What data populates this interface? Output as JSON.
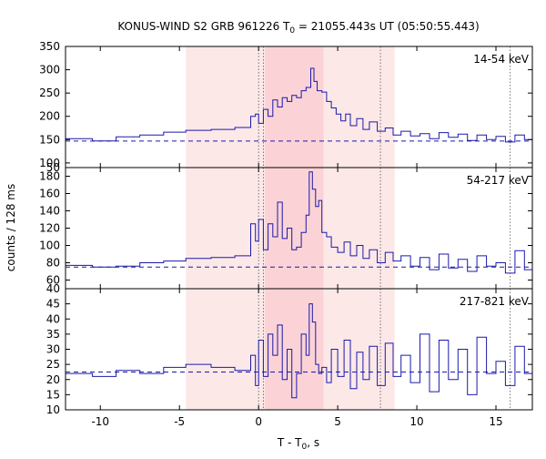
{
  "chart_data": {
    "type": "line",
    "title_main": "KONUS-WIND S2 GRB 961226 T",
    "title_sub": "0",
    "title_rest": " = 21055.443s UT (05:50:55.443)",
    "xlabel_main": "T - T",
    "xlabel_sub": "0",
    "xlabel_rest": ", s",
    "ylabel": "counts / 128 ms",
    "xlim": [
      -12.2,
      17.3
    ],
    "x_ticks": [
      -10,
      -5,
      0,
      5,
      10,
      15
    ],
    "intervals": {
      "light_shade": [
        -4.6,
        8.6
      ],
      "dark_shade": [
        0.4,
        4.1
      ]
    },
    "vertical_dotted_lines": [
      0.0,
      0.3,
      7.7,
      15.9
    ],
    "colors": {
      "curve": "#1a1aaa",
      "light_shade": "#fde8e8",
      "dark_shade": "#fbd3d7"
    },
    "panels": [
      {
        "label": "14-54 keV",
        "ylim": [
          90,
          350
        ],
        "y_ticks": [
          100,
          150,
          200,
          250,
          300,
          350
        ],
        "background": 147,
        "series": {
          "x": [
            -12.2,
            -10.5,
            -9.0,
            -7.5,
            -6.0,
            -4.6,
            -3.0,
            -1.5,
            -0.5,
            -0.2,
            0.0,
            0.3,
            0.6,
            0.9,
            1.2,
            1.5,
            1.8,
            2.1,
            2.4,
            2.7,
            3.0,
            3.3,
            3.5,
            3.7,
            4.0,
            4.3,
            4.6,
            4.9,
            5.2,
            5.5,
            5.8,
            6.2,
            6.6,
            7.0,
            7.5,
            8.0,
            8.5,
            9.0,
            9.6,
            10.2,
            10.8,
            11.4,
            12.0,
            12.6,
            13.2,
            13.8,
            14.4,
            15.0,
            15.6,
            16.2,
            16.8,
            17.3
          ],
          "values": [
            152,
            147,
            156,
            160,
            166,
            170,
            172,
            176,
            200,
            205,
            185,
            215,
            200,
            235,
            220,
            240,
            232,
            245,
            240,
            255,
            262,
            303,
            275,
            255,
            252,
            232,
            218,
            205,
            190,
            205,
            180,
            195,
            172,
            188,
            168,
            175,
            160,
            168,
            158,
            163,
            152,
            165,
            155,
            162,
            148,
            160,
            150,
            157,
            145,
            160,
            150,
            155
          ]
        }
      },
      {
        "label": "54-217 keV",
        "ylim": [
          50,
          190
        ],
        "y_ticks": [
          60,
          80,
          100,
          120,
          140,
          160,
          180
        ],
        "background": 75,
        "series": {
          "x": [
            -12.2,
            -10.5,
            -9.0,
            -7.5,
            -6.0,
            -4.6,
            -3.0,
            -1.5,
            -0.5,
            -0.2,
            0.0,
            0.3,
            0.6,
            0.9,
            1.2,
            1.5,
            1.8,
            2.1,
            2.4,
            2.7,
            3.0,
            3.2,
            3.4,
            3.6,
            3.8,
            4.0,
            4.3,
            4.6,
            5.0,
            5.4,
            5.8,
            6.2,
            6.6,
            7.0,
            7.5,
            8.0,
            8.5,
            9.0,
            9.6,
            10.2,
            10.8,
            11.4,
            12.0,
            12.6,
            13.2,
            13.8,
            14.4,
            15.0,
            15.6,
            16.2,
            16.8,
            17.3
          ],
          "values": [
            77,
            75,
            76,
            80,
            82,
            85,
            86,
            88,
            125,
            105,
            130,
            95,
            125,
            110,
            150,
            108,
            120,
            95,
            98,
            115,
            135,
            185,
            165,
            145,
            152,
            115,
            110,
            98,
            92,
            104,
            88,
            100,
            85,
            95,
            80,
            92,
            82,
            88,
            76,
            86,
            72,
            90,
            74,
            84,
            70,
            88,
            76,
            80,
            68,
            94,
            72,
            80
          ]
        }
      },
      {
        "label": "217-821 keV",
        "ylim": [
          10,
          50
        ],
        "y_ticks": [
          10,
          15,
          20,
          25,
          30,
          35,
          40,
          45
        ],
        "background": 22.5,
        "series": {
          "x": [
            -12.2,
            -10.5,
            -9.0,
            -7.5,
            -6.0,
            -4.6,
            -3.0,
            -1.5,
            -0.5,
            -0.2,
            0.0,
            0.3,
            0.6,
            0.9,
            1.2,
            1.5,
            1.8,
            2.1,
            2.4,
            2.7,
            3.0,
            3.2,
            3.4,
            3.6,
            3.8,
            4.0,
            4.3,
            4.6,
            5.0,
            5.4,
            5.8,
            6.2,
            6.6,
            7.0,
            7.5,
            8.0,
            8.5,
            9.0,
            9.6,
            10.2,
            10.8,
            11.4,
            12.0,
            12.6,
            13.2,
            13.8,
            14.4,
            15.0,
            15.6,
            16.2,
            16.8,
            17.3
          ],
          "values": [
            22,
            21,
            23,
            22,
            24,
            25,
            24,
            23,
            28,
            18,
            33,
            21,
            35,
            28,
            38,
            20,
            30,
            14,
            22,
            35,
            28,
            45,
            39,
            25,
            22,
            24,
            19,
            30,
            21,
            33,
            17,
            29,
            20,
            31,
            18,
            32,
            21,
            28,
            19,
            35,
            16,
            33,
            20,
            30,
            15,
            34,
            22,
            26,
            18,
            31,
            22,
            24
          ]
        }
      }
    ]
  }
}
